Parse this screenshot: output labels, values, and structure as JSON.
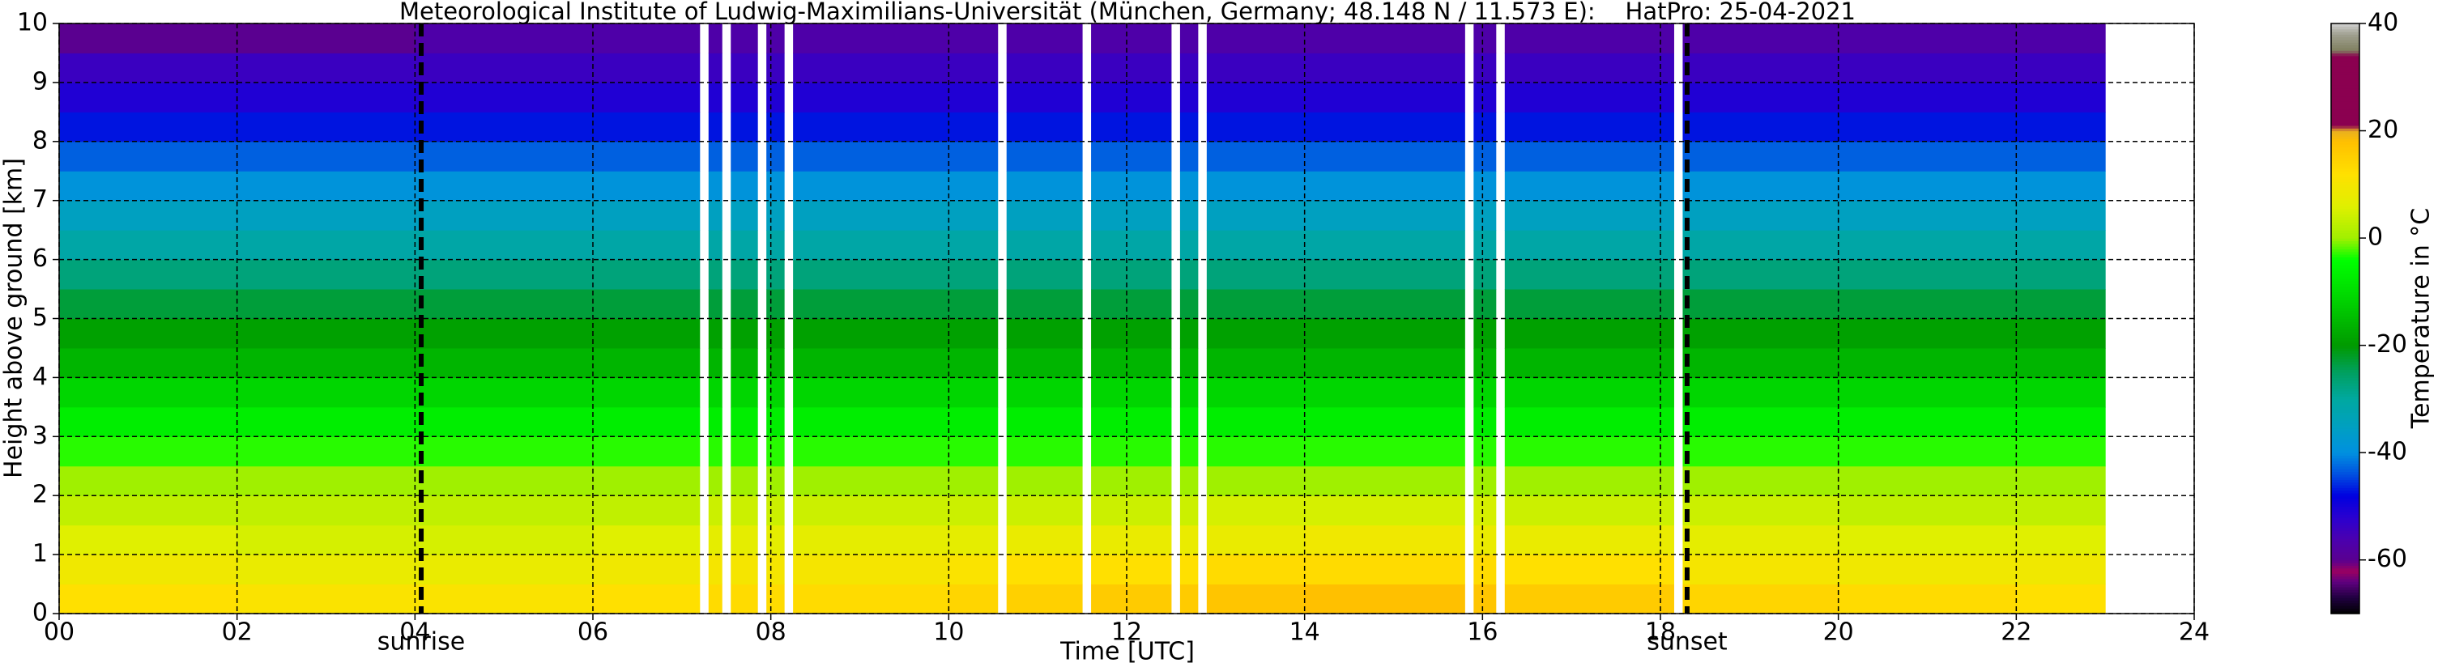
{
  "chart_data": {
    "type": "heatmap",
    "title": "Meteorological Institute of Ludwig-Maximilians-Universität (München, Germany; 48.148 N / 11.573 E):    HatPro: 25-04-2021",
    "xlabel": "Time [UTC]",
    "ylabel": "Height above ground [km]",
    "colorbar_label": "Temperature in °C",
    "xlim": [
      0,
      24
    ],
    "ylim": [
      0,
      10
    ],
    "xticks": [
      {
        "value": 0,
        "label": "00"
      },
      {
        "value": 2,
        "label": "02"
      },
      {
        "value": 4,
        "label": "04"
      },
      {
        "value": 6,
        "label": "06"
      },
      {
        "value": 8,
        "label": "08"
      },
      10,
      12,
      14,
      16,
      18,
      20,
      22,
      24
    ],
    "yticks": [
      0,
      1,
      2,
      3,
      4,
      5,
      6,
      7,
      8,
      9,
      10
    ],
    "grid": true,
    "clim": [
      -70,
      40
    ],
    "cticks": [
      -60,
      -40,
      -20,
      0,
      20,
      40
    ],
    "colorscale": [
      [
        -70,
        "#000000"
      ],
      [
        -67,
        "#200040"
      ],
      [
        -64,
        "#600080"
      ],
      [
        -62,
        "#9b0060"
      ],
      [
        -60,
        "#5a0090"
      ],
      [
        -56,
        "#4a00b0"
      ],
      [
        -52,
        "#2a00d0"
      ],
      [
        -48,
        "#0000e0"
      ],
      [
        -44,
        "#0050e0"
      ],
      [
        -40,
        "#0090e0"
      ],
      [
        -35,
        "#00a0c0"
      ],
      [
        -30,
        "#00a8a0"
      ],
      [
        -25,
        "#00a060"
      ],
      [
        -20,
        "#009a00"
      ],
      [
        -10,
        "#00dd00"
      ],
      [
        -4,
        "#00ff00"
      ],
      [
        0,
        "#a0f000"
      ],
      [
        6,
        "#e0f000"
      ],
      [
        12,
        "#ffe000"
      ],
      [
        18,
        "#ffc000"
      ],
      [
        20,
        "#e8b020"
      ],
      [
        21,
        "#8b0050"
      ],
      [
        34,
        "#8b0050"
      ],
      [
        35,
        "#808060"
      ],
      [
        38,
        "#a0a090"
      ],
      [
        40,
        "#d0d0d0"
      ]
    ],
    "xbins": [
      0,
      2,
      4,
      6,
      7.2,
      7.3,
      7.45,
      7.55,
      7.85,
      7.95,
      8.15,
      8.25,
      10,
      10.55,
      10.65,
      11.5,
      11.6,
      12.5,
      12.6,
      12.8,
      12.9,
      14,
      15.8,
      15.9,
      16.15,
      16.25,
      18.15,
      18.25,
      20,
      22,
      23
    ],
    "ybins": [
      0,
      0.5,
      1,
      1.5,
      2,
      2.5,
      3,
      3.5,
      4,
      4.5,
      5,
      5.5,
      6,
      6.5,
      7,
      7.5,
      8,
      8.5,
      9,
      9.5,
      10
    ],
    "z": [
      [
        12,
        11,
        11,
        12,
        null,
        13,
        null,
        13,
        null,
        13,
        null,
        13,
        14,
        null,
        15,
        null,
        16,
        null,
        16,
        null,
        17,
        18,
        null,
        17,
        null,
        16,
        null,
        14,
        13,
        12
      ],
      [
        9,
        8,
        8,
        9,
        null,
        10,
        null,
        10,
        null,
        10,
        null,
        10,
        11,
        null,
        12,
        null,
        12,
        null,
        12,
        null,
        13,
        13,
        null,
        13,
        null,
        12,
        null,
        10,
        9,
        9
      ],
      [
        6,
        5,
        5,
        6,
        null,
        7,
        null,
        7,
        null,
        7,
        null,
        7,
        7,
        null,
        8,
        null,
        8,
        null,
        8,
        null,
        8,
        9,
        null,
        8,
        null,
        8,
        null,
        7,
        6,
        6
      ],
      [
        3,
        3,
        3,
        3,
        null,
        4,
        null,
        4,
        null,
        4,
        null,
        4,
        4,
        null,
        4,
        null,
        4,
        null,
        4,
        null,
        5,
        5,
        null,
        5,
        null,
        4,
        null,
        4,
        3,
        3
      ],
      [
        0,
        0,
        0,
        0,
        null,
        0,
        null,
        0,
        null,
        0,
        null,
        0,
        0,
        null,
        0,
        null,
        0,
        null,
        0,
        null,
        0,
        0,
        null,
        0,
        null,
        0,
        null,
        0,
        0,
        0
      ],
      [
        -3,
        -3,
        -3,
        -3,
        null,
        -3,
        null,
        -3,
        null,
        -3,
        null,
        -3,
        -3,
        null,
        -3,
        null,
        -3,
        null,
        -3,
        null,
        -3,
        -3,
        null,
        -3,
        null,
        -3,
        null,
        -3,
        -3,
        -3
      ],
      [
        -7,
        -7,
        -7,
        -7,
        null,
        -7,
        null,
        -7,
        null,
        -7,
        null,
        -7,
        -7,
        null,
        -7,
        null,
        -7,
        null,
        -7,
        null,
        -7,
        -7,
        null,
        -7,
        null,
        -7,
        null,
        -7,
        -7,
        -7
      ],
      [
        -11,
        -11,
        -11,
        -11,
        null,
        -11,
        null,
        -11,
        null,
        -11,
        null,
        -11,
        -11,
        null,
        -11,
        null,
        -11,
        null,
        -11,
        null,
        -11,
        -11,
        null,
        -11,
        null,
        -11,
        null,
        -11,
        -11,
        -11
      ],
      [
        -16,
        -16,
        -16,
        -16,
        null,
        -16,
        null,
        -16,
        null,
        -16,
        null,
        -16,
        -16,
        null,
        -16,
        null,
        -16,
        null,
        -16,
        null,
        -16,
        -16,
        null,
        -16,
        null,
        -16,
        null,
        -16,
        -16,
        -16
      ],
      [
        -19,
        -19,
        -19,
        -19,
        null,
        -19,
        null,
        -19,
        null,
        -19,
        null,
        -19,
        -19,
        null,
        -19,
        null,
        -19,
        null,
        -19,
        null,
        -19,
        -19,
        null,
        -19,
        null,
        -19,
        null,
        -19,
        -19,
        -19
      ],
      [
        -23,
        -23,
        -23,
        -23,
        null,
        -23,
        null,
        -23,
        null,
        -23,
        null,
        -23,
        -23,
        null,
        -23,
        null,
        -23,
        null,
        -23,
        null,
        -23,
        -23,
        null,
        -23,
        null,
        -23,
        null,
        -23,
        -23,
        -23
      ],
      [
        -27,
        -27,
        -27,
        -27,
        null,
        -27,
        null,
        -27,
        null,
        -27,
        null,
        -27,
        -27,
        null,
        -27,
        null,
        -27,
        null,
        -27,
        null,
        -27,
        -27,
        null,
        -27,
        null,
        -27,
        null,
        -27,
        -27,
        -27
      ],
      [
        -31,
        -31,
        -31,
        -31,
        null,
        -31,
        null,
        -31,
        null,
        -31,
        null,
        -31,
        -31,
        null,
        -31,
        null,
        -31,
        null,
        -31,
        null,
        -31,
        -31,
        null,
        -31,
        null,
        -31,
        null,
        -31,
        -31,
        -31
      ],
      [
        -35,
        -35,
        -35,
        -35,
        null,
        -35,
        null,
        -35,
        null,
        -35,
        null,
        -35,
        -35,
        null,
        -35,
        null,
        -35,
        null,
        -35,
        null,
        -35,
        -35,
        null,
        -35,
        null,
        -35,
        null,
        -35,
        -35,
        -35
      ],
      [
        -39,
        -39,
        -39,
        -39,
        null,
        -39,
        null,
        -39,
        null,
        -39,
        null,
        -39,
        -39,
        null,
        -39,
        null,
        -39,
        null,
        -39,
        null,
        -39,
        -39,
        null,
        -39,
        null,
        -39,
        null,
        -39,
        -39,
        -39
      ],
      [
        -43,
        -43,
        -43,
        -43,
        null,
        -43,
        null,
        -43,
        null,
        -43,
        null,
        -43,
        -43,
        null,
        -43,
        null,
        -43,
        null,
        -43,
        null,
        -43,
        -43,
        null,
        -43,
        null,
        -43,
        null,
        -43,
        -43,
        -43
      ],
      [
        -47,
        -47,
        -47,
        -47,
        null,
        -47,
        null,
        -47,
        null,
        -47,
        null,
        -47,
        -47,
        null,
        -47,
        null,
        -47,
        null,
        -47,
        null,
        -47,
        -47,
        null,
        -47,
        null,
        -47,
        null,
        -47,
        -47,
        -47
      ],
      [
        -51,
        -51,
        -51,
        -51,
        null,
        -51,
        null,
        -51,
        null,
        -51,
        null,
        -51,
        -51,
        null,
        -51,
        null,
        -51,
        null,
        -51,
        null,
        -51,
        -51,
        null,
        -51,
        null,
        -51,
        null,
        -51,
        -51,
        -51
      ],
      [
        -54,
        -54,
        -54,
        -54,
        null,
        -54,
        null,
        -54,
        null,
        -54,
        null,
        -54,
        -54,
        null,
        -54,
        null,
        -54,
        null,
        -54,
        null,
        -54,
        -54,
        null,
        -54,
        null,
        -54,
        null,
        -54,
        -54,
        -54
      ],
      [
        -60,
        -60,
        -57,
        -57,
        null,
        -57,
        null,
        -57,
        null,
        -57,
        null,
        -57,
        -57,
        null,
        -57,
        null,
        -57,
        null,
        -57,
        null,
        -57,
        -57,
        null,
        -57,
        null,
        -57,
        null,
        -57,
        -57,
        -57
      ]
    ],
    "annotations": [
      {
        "x": 4.07,
        "text": "sunrise"
      },
      {
        "x": 18.3,
        "text": "sunset"
      }
    ]
  }
}
